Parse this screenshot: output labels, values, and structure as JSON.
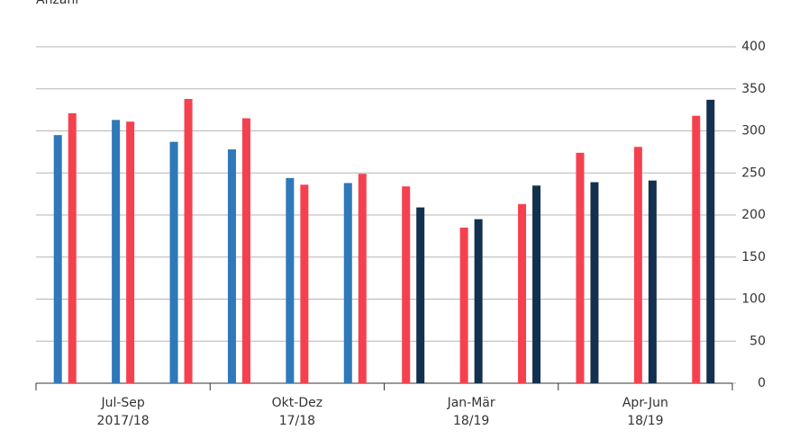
{
  "chart_data": {
    "type": "bar",
    "y_label": "Anzahl",
    "categories": [
      null,
      null,
      null,
      null,
      null,
      null,
      null,
      null,
      null,
      null,
      null,
      null
    ],
    "groups": [
      [
        "Jul-Sep",
        "2017/18"
      ],
      [
        "Okt-Dez",
        "17/18"
      ],
      [
        "Jan-Mär",
        "18/19"
      ],
      [
        "Apr-Jun",
        "18/19"
      ]
    ],
    "series": [
      {
        "color": "#2f78b9",
        "values": [
          295,
          313,
          287,
          278,
          244,
          238,
          null,
          null,
          null,
          null,
          null,
          null
        ]
      },
      {
        "color": "#f5414f",
        "values": [
          321,
          311,
          338,
          315,
          236,
          249,
          234,
          185,
          213,
          274,
          281,
          318
        ]
      },
      {
        "color": "#14304f",
        "values": [
          null,
          null,
          null,
          null,
          null,
          null,
          209,
          195,
          235,
          239,
          241,
          337
        ]
      }
    ],
    "ylim": [
      0,
      400
    ],
    "yticks": [
      0,
      50,
      100,
      150,
      200,
      250,
      300,
      350,
      400
    ],
    "grid": true,
    "y_axis_side": "right"
  }
}
